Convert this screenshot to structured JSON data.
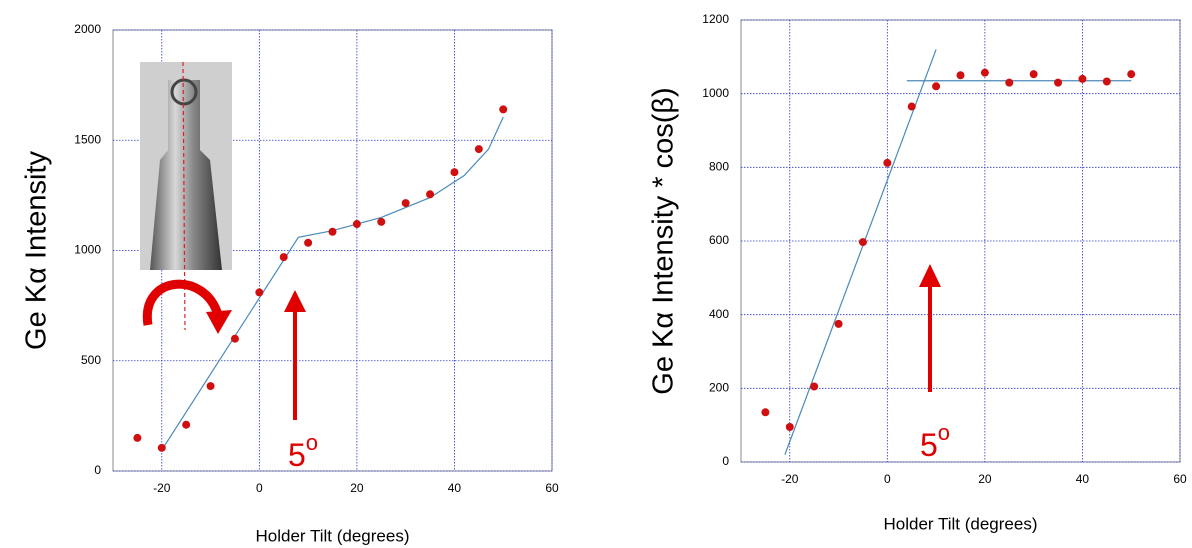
{
  "chart_data": [
    {
      "type": "scatter",
      "xlabel": "Holder Tilt (degrees)",
      "ylabel": "Ge Kα Intensity",
      "xlim": [
        -30,
        60
      ],
      "xticks": [
        -20,
        0,
        20,
        40,
        60
      ],
      "ylim": [
        0,
        2000
      ],
      "yticks": [
        0,
        500,
        1000,
        1500,
        2000
      ],
      "grid": true,
      "x": [
        -25,
        -20,
        -15,
        -10,
        -5,
        0,
        5,
        10,
        15,
        20,
        25,
        30,
        35,
        40,
        45,
        50
      ],
      "values": [
        150,
        105,
        210,
        385,
        600,
        810,
        970,
        1035,
        1085,
        1120,
        1130,
        1215,
        1255,
        1355,
        1460,
        1640
      ],
      "color": "#d01010",
      "fits": [
        {
          "color": "#4a8ab8",
          "x": [
            -20,
            8,
            15,
            25,
            35,
            42,
            47,
            50
          ],
          "values": [
            95,
            1060,
            1090,
            1150,
            1240,
            1340,
            1460,
            1605
          ]
        }
      ],
      "annotation": {
        "text": "5",
        "sup": "o"
      }
    },
    {
      "type": "scatter",
      "xlabel": "Holder Tilt (degrees)",
      "ylabel": "Ge Kα Intensity * cos(β)",
      "xlim": [
        -30,
        60
      ],
      "xticks": [
        -20,
        0,
        20,
        40,
        60
      ],
      "ylim": [
        0,
        1200
      ],
      "yticks": [
        0,
        200,
        400,
        600,
        800,
        1000,
        1200
      ],
      "grid": true,
      "x": [
        -25,
        -20,
        -15,
        -10,
        -5,
        0,
        5,
        10,
        15,
        20,
        25,
        30,
        35,
        40,
        45,
        50
      ],
      "values": [
        135,
        95,
        205,
        375,
        597,
        812,
        965,
        1020,
        1050,
        1057,
        1030,
        1053,
        1030,
        1040,
        1033,
        1053
      ],
      "color": "#d01010",
      "fits": [
        {
          "color": "#4a8ab8",
          "x": [
            -21,
            10
          ],
          "values": [
            20,
            1120
          ]
        },
        {
          "color": "#4a8ab8",
          "x": [
            4,
            50
          ],
          "values": [
            1035,
            1035
          ]
        }
      ],
      "annotation": {
        "text": "5",
        "sup": "o"
      }
    }
  ]
}
